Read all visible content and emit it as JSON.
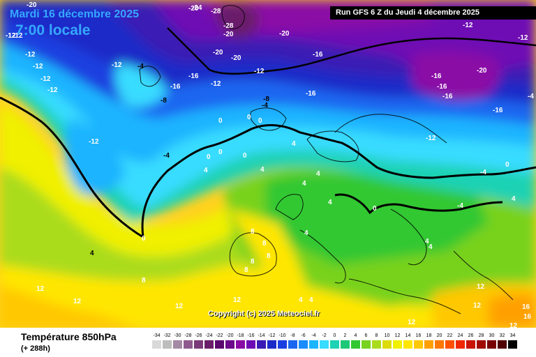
{
  "header": {
    "date": "Mardi 16 décembre 2025",
    "time": "7:00 locale",
    "run": "Run GFS 6 Z du Jeudi 4 décembre 2025"
  },
  "map": {
    "copyright": "Copyright (c) 2025 Meteociel.fr",
    "isotherm_labels": [
      "-20",
      "-24",
      "-28",
      "-28",
      "-20",
      "-12",
      "-12",
      "-12",
      "-12",
      "-12",
      "-12",
      "-4",
      "-16",
      "-12",
      "-16",
      "-8",
      "-8",
      "-12",
      "-16",
      "-20",
      "-20",
      "-20",
      "-16",
      "-20",
      "-16",
      "-16",
      "-16",
      "-12",
      "-20",
      "-16",
      "-4",
      "-12",
      "-4",
      "0",
      "0",
      "0",
      "0",
      "0",
      "0",
      "4",
      "4",
      "4",
      "4",
      "4",
      "4",
      "0",
      "0",
      "4",
      "8",
      "8",
      "8",
      "8",
      "4",
      "8",
      "8",
      "12",
      "12",
      "4",
      "4",
      "4",
      "12",
      "4",
      "12",
      "12",
      "12",
      "12",
      "-4",
      "-4",
      "-4",
      "0",
      "4",
      "16",
      "16",
      "12",
      "-12",
      "-12",
      "-12",
      "-12"
    ]
  },
  "footer": {
    "parameter": "Température 850hPa",
    "lead_time": "(+ 288h)"
  },
  "legend": {
    "labels": [
      "-34",
      "-32",
      "-30",
      "-28",
      "-26",
      "-24",
      "-22",
      "-20",
      "-18",
      "-16",
      "-14",
      "-12",
      "-10",
      "-8",
      "-6",
      "-4",
      "-2",
      "0",
      "2",
      "4",
      "6",
      "8",
      "10",
      "12",
      "14",
      "16",
      "18",
      "20",
      "22",
      "24",
      "26",
      "28",
      "30",
      "32",
      "34"
    ],
    "colors": [
      "#d9d9d9",
      "#bdbdbd",
      "#a48aa4",
      "#8e5a8e",
      "#7a3a7a",
      "#6a1e6a",
      "#5a0a6e",
      "#6b0a8a",
      "#8a0aa6",
      "#6e0ab4",
      "#3a1ab4",
      "#1a2ac8",
      "#1a40e0",
      "#1a66f0",
      "#1a8cff",
      "#1ab4ff",
      "#38dcff",
      "#1ed2b4",
      "#1ec878",
      "#32c832",
      "#78d21e",
      "#aadc1e",
      "#dcdc0a",
      "#f0f000",
      "#ffe600",
      "#ffc800",
      "#ffa000",
      "#ff7800",
      "#ff5000",
      "#f02800",
      "#c81400",
      "#a00a00",
      "#780000",
      "#500000",
      "#000000"
    ]
  }
}
